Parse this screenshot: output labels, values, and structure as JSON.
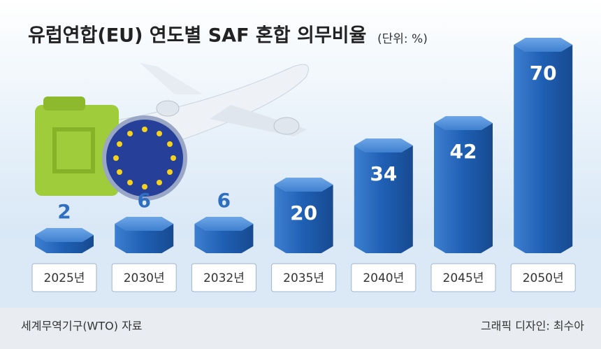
{
  "chart_data": {
    "type": "bar",
    "title": "유럽연합(EU) 연도별 SAF 혼합 의무비율",
    "unit": "(단위: %)",
    "categories": [
      "2025년",
      "2030년",
      "2032년",
      "2035년",
      "2040년",
      "2045년",
      "2050년"
    ],
    "values": [
      2,
      6,
      6,
      20,
      34,
      42,
      70
    ],
    "color": "#2f6fc0",
    "source": "세계무역기구(WTO) 자료",
    "credit": "그래픽 디자인: 최수아"
  }
}
